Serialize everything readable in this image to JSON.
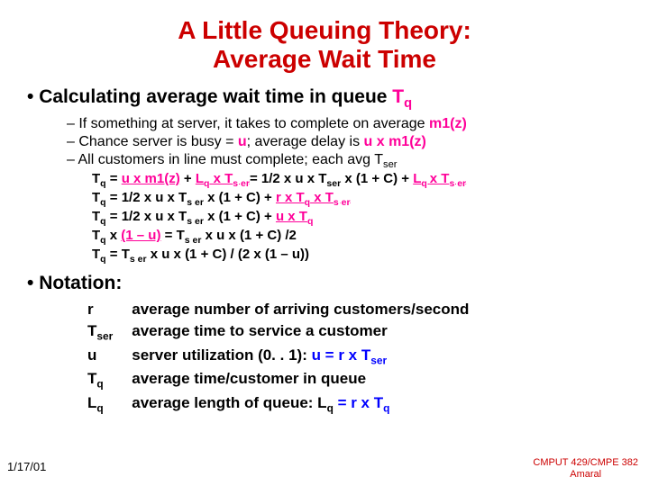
{
  "colors": {
    "title": "#cc0000",
    "body": "#000000",
    "hl_pink": "#ff0099",
    "hl_blue": "#0000ff",
    "footer": "#cc0000"
  },
  "title_l1": "A Little Queuing Theory:",
  "title_l2": "Average Wait Time",
  "bullet1": "Calculating average wait time in queue ",
  "bullet1_tq": "T",
  "bullet1_tq_sub": "q",
  "sub1_a": "If something at server, it takes to complete on average ",
  "sub1_b": "m1(z)",
  "sub2_a": "Chance server is busy = ",
  "sub2_b": "u",
  "sub2_c": "; average delay is ",
  "sub2_d": "u x m1(z)",
  "sub3_a": "All customers in line must complete; each avg T",
  "sub3_sub": "ser",
  "eq1_a": "T",
  "eq1_b": "q",
  "eq1_c": " = ",
  "eq1_d": "u x m1(z)",
  "eq1_e": " + ",
  "eq1_f": " L",
  "eq1_f_sub": "q",
  "eq1_g": " x T",
  "eq1_g_sub": "s er",
  "eq1_h": "= 1/2 x u x  T",
  "eq1_h_sub": "ser",
  "eq1_i": " x (1 + C) + ",
  "eq1_j": " L",
  "eq1_j_sub": "q ",
  "eq1_k": "x T",
  "eq1_k_sub": "s er",
  "eq2_a": "T",
  "eq2_a_sub": "q",
  "eq2_b": " = 1/2 x u x T",
  "eq2_b_sub": "s er",
  "eq2_c": " x (1 + C) + ",
  "eq2_d": "r x T",
  "eq2_d_sub": "q",
  "eq2_e": " x  T",
  "eq2_e_sub": "s er",
  "eq3_a": "T",
  "eq3_a_sub": "q",
  "eq3_b": " = 1/2 x u x T",
  "eq3_b_sub": "s er",
  "eq3_c": "  x  (1 + C) + ",
  "eq3_d": " u x T",
  "eq3_d_sub": "q",
  "eq4_a": "T",
  "eq4_a_sub": "q",
  "eq4_b": " x ",
  "eq4_c": "(1 – u)",
  "eq4_d": "  =  T",
  "eq4_d_sub": "s er",
  "eq4_e": "  x  u  x  (1 + C) /2",
  "eq5_a": "T",
  "eq5_a_sub": "q",
  "eq5_b": " = T",
  "eq5_b_sub": "s er",
  "eq5_c": " x   u  x   (1 + C) / (2 x (1 – u))",
  "bullet2": "Notation:",
  "n_r": "r",
  "n_r_def": "average number of arriving customers/second",
  "n_tser": "T",
  "n_tser_sub": "ser",
  "n_tser_def": "average time to service a customer",
  "n_u": "u",
  "n_u_def_a": "server utilization (0. . 1): ",
  "n_u_def_b": "u = r x T",
  "n_u_def_b_sub": "ser",
  "n_tq": "T",
  "n_tq_sub": "q",
  "n_tq_def": "average time/customer in queue",
  "n_lq": "L",
  "n_lq_sub": "q",
  "n_lq_def_a": "average length of queue: L",
  "n_lq_def_a_sub": "q",
  "n_lq_def_b": "= r x T",
  "n_lq_def_b_sub": "q",
  "footer_date": "1/17/01",
  "footer_course": "CMPUT 429/CMPE 382",
  "footer_author": "Amaral"
}
